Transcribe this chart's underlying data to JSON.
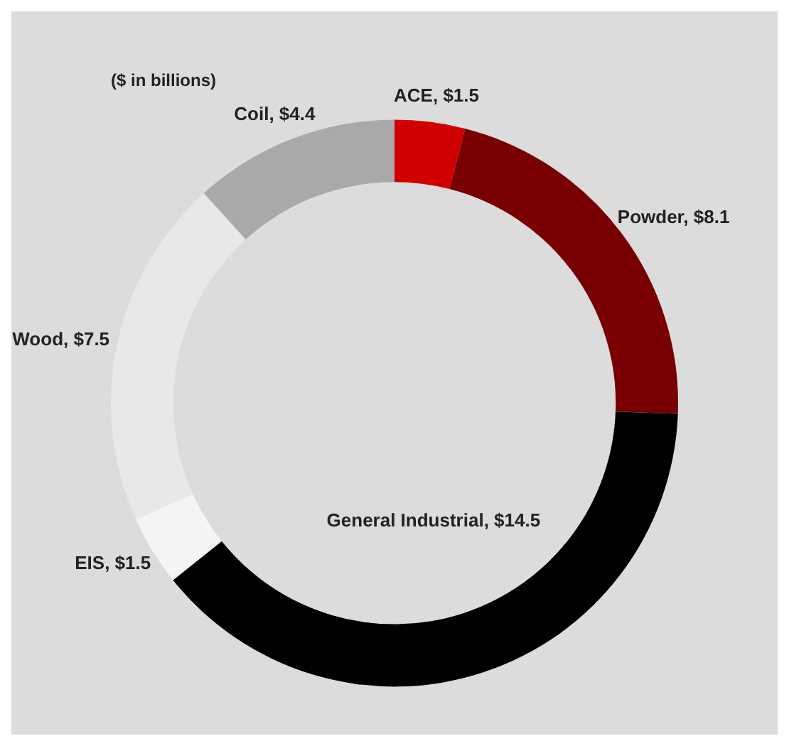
{
  "chart_data": {
    "type": "donut",
    "title": "($ in billions)",
    "categories": [
      "ACE",
      "Powder",
      "General Industrial",
      "EIS",
      "Wood",
      "Coil"
    ],
    "values": [
      1.5,
      8.1,
      14.5,
      1.5,
      7.5,
      4.4
    ],
    "value_labels": [
      "$1.5",
      "$8.1",
      "$14.5",
      "$1.5",
      "$7.5",
      "$4.4"
    ],
    "colors": [
      "#d00000",
      "#780000",
      "#000000",
      "#f4f4f4",
      "#e8e8e8",
      "#a9a9a9"
    ],
    "legend": false
  }
}
